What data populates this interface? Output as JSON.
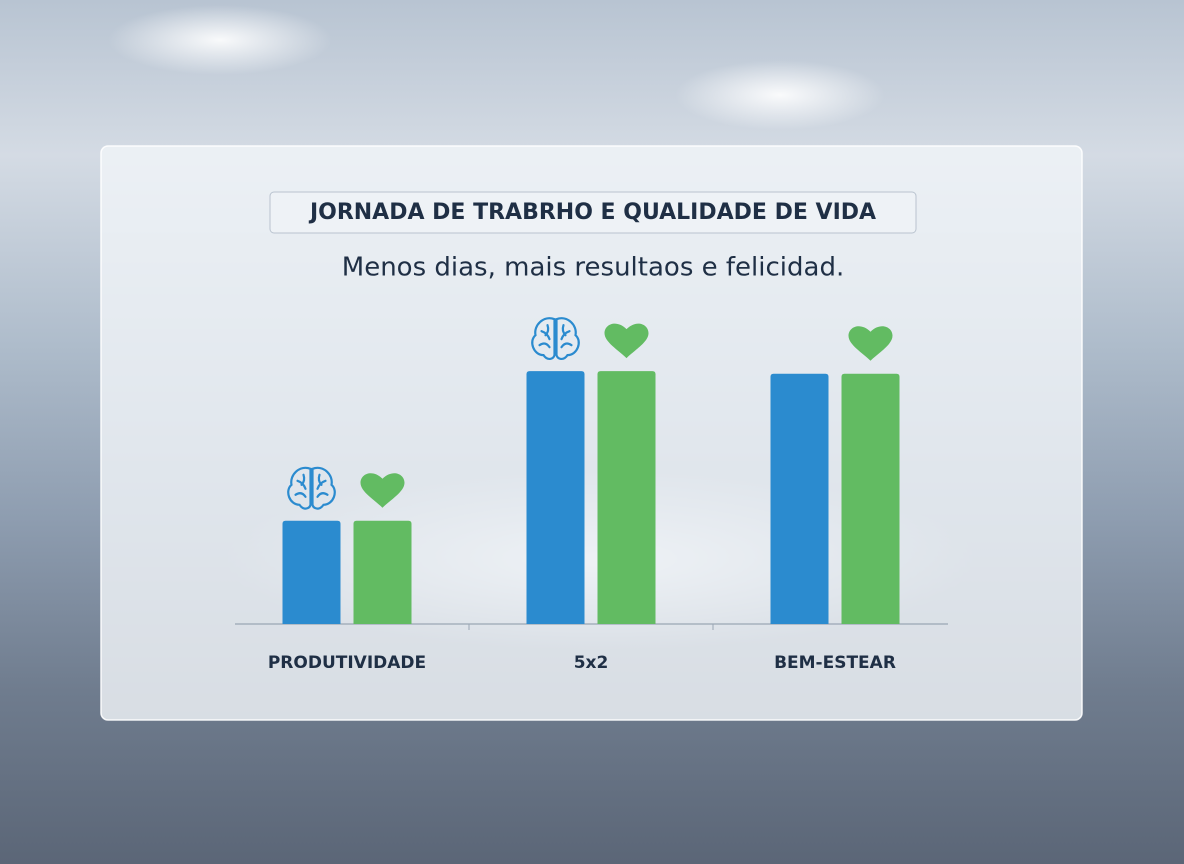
{
  "chart_data": {
    "type": "bar",
    "title": "JORNADA DE TRABRHO E QUALIDADE DE VIDA",
    "subtitle": "Menos dias, mais resultaos e felicidad.",
    "categories": [
      "PRODUTIVIDADE",
      "5x2",
      "BEM-ESTEAR"
    ],
    "series": [
      {
        "color": "#2b8bcf",
        "values": [
          40,
          98,
          97
        ]
      },
      {
        "color": "#62bb62",
        "values": [
          40,
          98,
          97
        ]
      }
    ],
    "ylim": [
      0,
      100
    ]
  }
}
